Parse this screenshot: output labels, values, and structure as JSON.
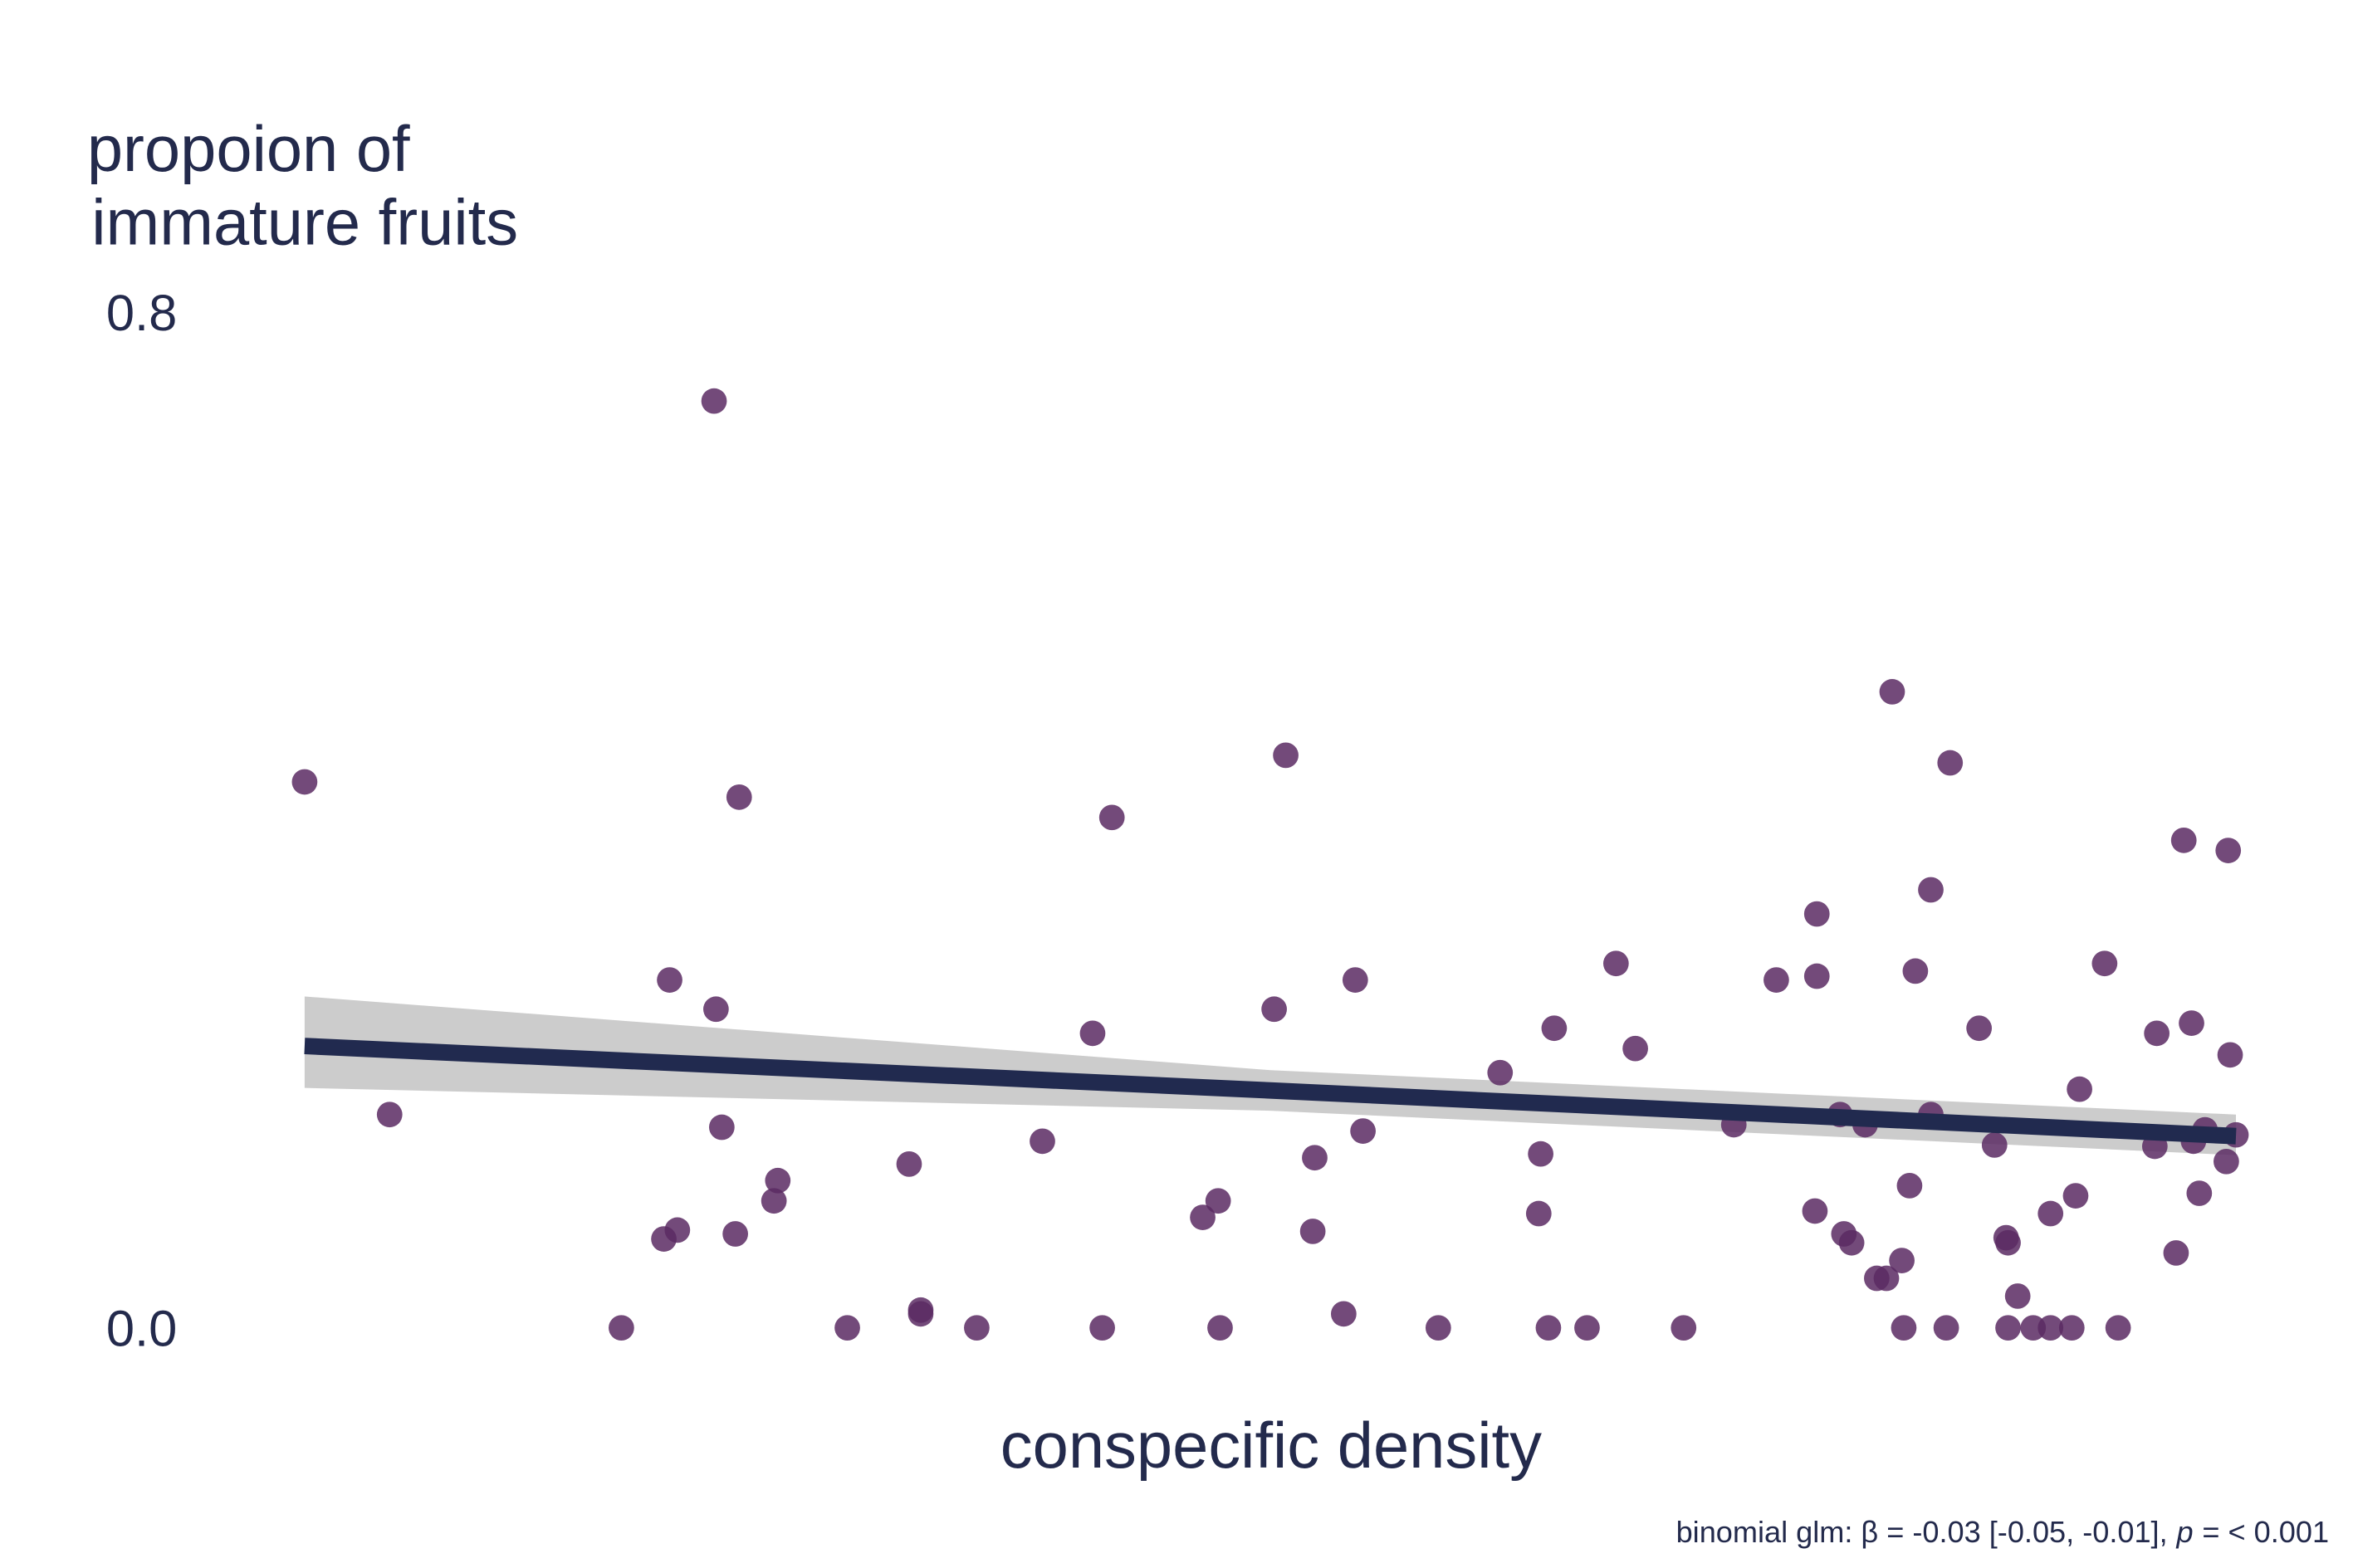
{
  "chart_data": {
    "type": "scatter",
    "y_label": [
      "propoion of",
      "immature fruits"
    ],
    "x_label": "conspecific density",
    "note": [
      "binomial glm: β = -0.03 [-0.05, -0.01],",
      "p",
      "= < 0.001"
    ],
    "color": "#5b2a63",
    "xlim": [
      0,
      1
    ],
    "ylim": [
      0,
      0.8
    ],
    "yticks": [
      {
        "value": 0,
        "label": "0.0"
      },
      {
        "value": 0.8,
        "label": "0.8"
      }
    ],
    "x": [
      0.0,
      0.044,
      0.164,
      0.186,
      0.193,
      0.189,
      0.212,
      0.213,
      0.216,
      0.223,
      0.225,
      0.243,
      0.245,
      0.281,
      0.313,
      0.319,
      0.319,
      0.348,
      0.382,
      0.408,
      0.413,
      0.418,
      0.465,
      0.473,
      0.474,
      0.502,
      0.508,
      0.522,
      0.523,
      0.538,
      0.544,
      0.548,
      0.587,
      0.619,
      0.639,
      0.64,
      0.644,
      0.647,
      0.664,
      0.679,
      0.689,
      0.714,
      0.74,
      0.762,
      0.782,
      0.783,
      0.783,
      0.795,
      0.797,
      0.801,
      0.808,
      0.814,
      0.819,
      0.822,
      0.827,
      0.828,
      0.831,
      0.834,
      0.842,
      0.842,
      0.85,
      0.852,
      0.867,
      0.875,
      0.881,
      0.882,
      0.882,
      0.887,
      0.895,
      0.904,
      0.904,
      0.915,
      0.917,
      0.919,
      0.932,
      0.939,
      0.958,
      0.959,
      0.969,
      0.973,
      0.977,
      0.978,
      0.981,
      0.984,
      0.995,
      0.996,
      0.997,
      1.0
    ],
    "values": [
      0.43,
      0.168,
      0,
      0.07,
      0.077,
      0.274,
      0.73,
      0.251,
      0.158,
      0.074,
      0.418,
      0.1,
      0.116,
      0,
      0.129,
      0.014,
      0.011,
      0,
      0.147,
      0.232,
      0,
      0.402,
      0.087,
      0.1,
      0,
      0.251,
      0.451,
      0.076,
      0.134,
      0.011,
      0.274,
      0.155,
      0,
      0.201,
      0.09,
      0.137,
      0,
      0.236,
      0,
      0.287,
      0.22,
      0,
      0.16,
      0.274,
      0.092,
      0.326,
      0.277,
      0.168,
      0.074,
      0.067,
      0.16,
      0.039,
      0.039,
      0.501,
      0.053,
      0,
      0.112,
      0.281,
      0.345,
      0.168,
      0,
      0.445,
      0.236,
      0.144,
      0.071,
      0.067,
      0,
      0.025,
      0,
      0.09,
      0,
      0,
      0.104,
      0.188,
      0.287,
      0,
      0.143,
      0.232,
      0.059,
      0.384,
      0.24,
      0.147,
      0.106,
      0.156,
      0.131,
      0.376,
      0.215,
      0.152
    ],
    "fit": {
      "color": "#212a4f",
      "band_color": "#cccccc",
      "x": [
        0,
        0.5,
        1
      ],
      "values": [
        0.222,
        0.187,
        0.151
      ],
      "lower": [
        0.189,
        0.171,
        0.136
      ],
      "upper": [
        0.261,
        0.203,
        0.168
      ]
    }
  }
}
